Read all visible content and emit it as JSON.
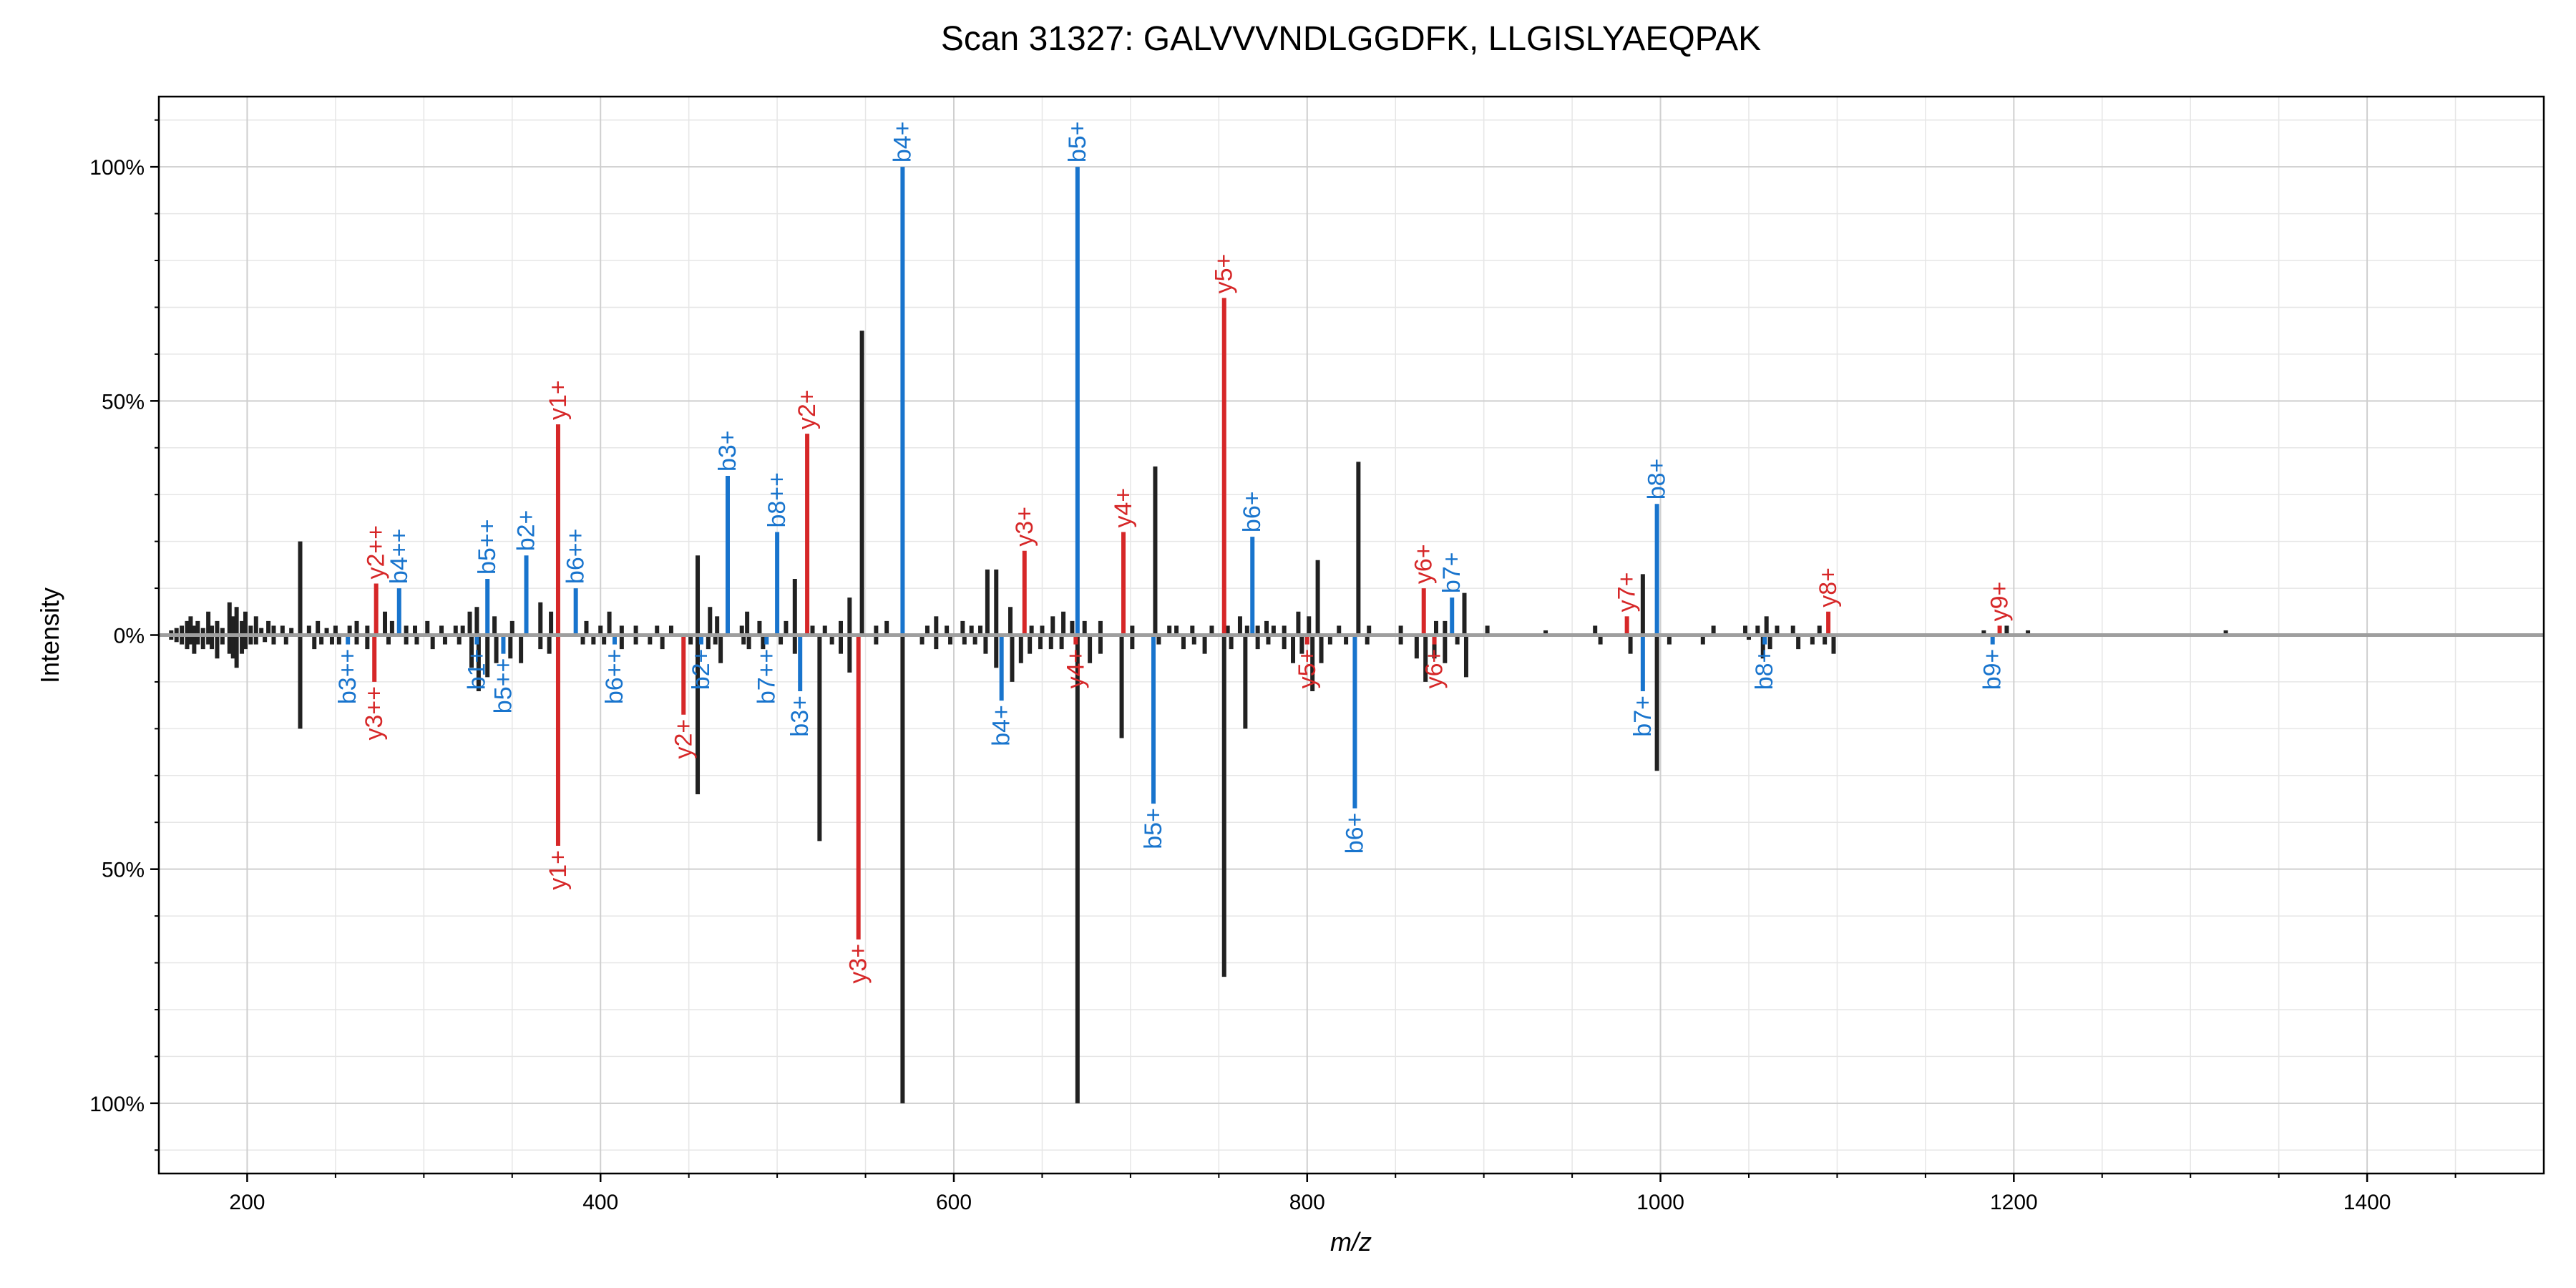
{
  "chart_data": {
    "type": "mirror_spectrum",
    "title": "Scan 31327: GALVVVNDLGGDFK, LLGISLYAEQPAK",
    "xlabel": "m/z",
    "ylabel": "Intensity",
    "xlim": [
      150,
      1500
    ],
    "ylim": [
      -115,
      115
    ],
    "x_ticks": [
      200,
      400,
      600,
      800,
      1000,
      1200,
      1400
    ],
    "x_tick_labels": [
      "200",
      "400",
      "600",
      "800",
      "1000",
      "1200",
      "1400"
    ],
    "y_ticks": [
      -100,
      -50,
      0,
      50,
      100
    ],
    "y_tick_labels": [
      "100%",
      "50%",
      "0%",
      "50%",
      "100%"
    ],
    "grid": true,
    "colors": {
      "b_ion": "#1874cd",
      "y_ion": "#d62728",
      "unannotated": "#212121",
      "zero_line": "#9e9e9e"
    },
    "top_annotated": [
      {
        "mz": 273,
        "intensity": 11,
        "label": "y2++",
        "ion": "y"
      },
      {
        "mz": 286,
        "intensity": 10,
        "label": "b4++",
        "ion": "b"
      },
      {
        "mz": 336,
        "intensity": 12,
        "label": "b5++",
        "ion": "b"
      },
      {
        "mz": 358,
        "intensity": 17,
        "label": "b2+",
        "ion": "b"
      },
      {
        "mz": 376,
        "intensity": 45,
        "label": "y1+",
        "ion": "y"
      },
      {
        "mz": 386,
        "intensity": 10,
        "label": "b6++",
        "ion": "b"
      },
      {
        "mz": 472,
        "intensity": 34,
        "label": "b3+",
        "ion": "b"
      },
      {
        "mz": 500,
        "intensity": 22,
        "label": "b8++",
        "ion": "b"
      },
      {
        "mz": 517,
        "intensity": 43,
        "label": "y2+",
        "ion": "y"
      },
      {
        "mz": 571,
        "intensity": 100,
        "label": "b4+",
        "ion": "b"
      },
      {
        "mz": 640,
        "intensity": 18,
        "label": "y3+",
        "ion": "y"
      },
      {
        "mz": 670,
        "intensity": 100,
        "label": "b5+",
        "ion": "b"
      },
      {
        "mz": 696,
        "intensity": 22,
        "label": "y4+",
        "ion": "y"
      },
      {
        "mz": 753,
        "intensity": 72,
        "label": "y5+",
        "ion": "y"
      },
      {
        "mz": 769,
        "intensity": 21,
        "label": "b6+",
        "ion": "b"
      },
      {
        "mz": 866,
        "intensity": 10,
        "label": "y6+",
        "ion": "y"
      },
      {
        "mz": 882,
        "intensity": 8,
        "label": "b7+",
        "ion": "b"
      },
      {
        "mz": 981,
        "intensity": 4,
        "label": "y7+",
        "ion": "y"
      },
      {
        "mz": 998,
        "intensity": 28,
        "label": "b8+",
        "ion": "b"
      },
      {
        "mz": 1095,
        "intensity": 5,
        "label": "y8+",
        "ion": "y"
      },
      {
        "mz": 1192,
        "intensity": 2,
        "label": "y9+",
        "ion": "y"
      }
    ],
    "bottom_annotated": [
      {
        "mz": 257,
        "intensity": 2,
        "label": "b3++",
        "ion": "b"
      },
      {
        "mz": 272,
        "intensity": 10,
        "label": "y3++",
        "ion": "y"
      },
      {
        "mz": 330,
        "intensity": 2,
        "label": "b1+",
        "ion": "b"
      },
      {
        "mz": 345,
        "intensity": 4,
        "label": "b5++",
        "ion": "b"
      },
      {
        "mz": 376,
        "intensity": 45,
        "label": "y1+",
        "ion": "y"
      },
      {
        "mz": 408,
        "intensity": 2,
        "label": "b6++",
        "ion": "b"
      },
      {
        "mz": 447,
        "intensity": 17,
        "label": "y2+",
        "ion": "y"
      },
      {
        "mz": 457,
        "intensity": 2,
        "label": "b2+",
        "ion": "b"
      },
      {
        "mz": 494,
        "intensity": 2,
        "label": "b7++",
        "ion": "b"
      },
      {
        "mz": 513,
        "intensity": 12,
        "label": "b3+",
        "ion": "b"
      },
      {
        "mz": 546,
        "intensity": 65,
        "label": "y3+",
        "ion": "y"
      },
      {
        "mz": 627,
        "intensity": 14,
        "label": "b4+",
        "ion": "b"
      },
      {
        "mz": 669,
        "intensity": 2,
        "label": "y4+",
        "ion": "y"
      },
      {
        "mz": 713,
        "intensity": 36,
        "label": "b5+",
        "ion": "b"
      },
      {
        "mz": 800,
        "intensity": 2,
        "label": "y5+",
        "ion": "y"
      },
      {
        "mz": 827,
        "intensity": 37,
        "label": "b6+",
        "ion": "b"
      },
      {
        "mz": 872,
        "intensity": 2,
        "label": "y6+",
        "ion": "y"
      },
      {
        "mz": 990,
        "intensity": 12,
        "label": "b7+",
        "ion": "b"
      },
      {
        "mz": 1059,
        "intensity": 2,
        "label": "b8+",
        "ion": "b"
      },
      {
        "mz": 1188,
        "intensity": 2,
        "label": "b9+",
        "ion": "b"
      }
    ],
    "top_unannotated": [
      [
        157,
        1
      ],
      [
        160,
        1.5
      ],
      [
        163,
        2
      ],
      [
        166,
        3
      ],
      [
        168,
        4
      ],
      [
        170,
        2
      ],
      [
        172,
        3
      ],
      [
        175,
        1.5
      ],
      [
        178,
        5
      ],
      [
        180,
        2
      ],
      [
        183,
        3
      ],
      [
        186,
        1.5
      ],
      [
        190,
        7
      ],
      [
        192,
        4
      ],
      [
        194,
        6
      ],
      [
        197,
        3
      ],
      [
        199,
        5
      ],
      [
        202,
        2
      ],
      [
        205,
        4
      ],
      [
        208,
        1.5
      ],
      [
        212,
        3
      ],
      [
        215,
        2
      ],
      [
        220,
        2
      ],
      [
        225,
        1.5
      ],
      [
        230,
        20
      ],
      [
        235,
        2
      ],
      [
        240,
        3
      ],
      [
        245,
        1.5
      ],
      [
        250,
        2
      ],
      [
        258,
        2
      ],
      [
        262,
        3
      ],
      [
        268,
        2
      ],
      [
        278,
        5
      ],
      [
        282,
        3
      ],
      [
        290,
        2
      ],
      [
        295,
        2
      ],
      [
        302,
        3
      ],
      [
        310,
        2
      ],
      [
        318,
        2
      ],
      [
        322,
        2
      ],
      [
        326,
        5
      ],
      [
        330,
        6
      ],
      [
        340,
        4
      ],
      [
        350,
        3
      ],
      [
        366,
        7
      ],
      [
        372,
        5
      ],
      [
        392,
        3
      ],
      [
        400,
        2
      ],
      [
        405,
        5
      ],
      [
        412,
        2
      ],
      [
        420,
        2
      ],
      [
        432,
        2
      ],
      [
        440,
        2
      ],
      [
        455,
        17
      ],
      [
        462,
        6
      ],
      [
        466,
        4
      ],
      [
        480,
        2
      ],
      [
        483,
        5
      ],
      [
        490,
        3
      ],
      [
        505,
        3
      ],
      [
        510,
        12
      ],
      [
        520,
        2
      ],
      [
        527,
        2
      ],
      [
        536,
        3
      ],
      [
        541,
        8
      ],
      [
        548,
        65
      ],
      [
        556,
        2
      ],
      [
        562,
        3
      ],
      [
        585,
        2
      ],
      [
        590,
        4
      ],
      [
        596,
        2
      ],
      [
        605,
        3
      ],
      [
        610,
        2
      ],
      [
        615,
        2
      ],
      [
        619,
        14
      ],
      [
        624,
        14
      ],
      [
        632,
        6
      ],
      [
        644,
        2
      ],
      [
        650,
        2
      ],
      [
        656,
        4
      ],
      [
        662,
        5
      ],
      [
        667,
        3
      ],
      [
        674,
        3
      ],
      [
        683,
        3
      ],
      [
        701,
        2
      ],
      [
        714,
        36
      ],
      [
        722,
        2
      ],
      [
        726,
        2
      ],
      [
        735,
        2
      ],
      [
        746,
        2
      ],
      [
        755,
        2
      ],
      [
        762,
        4
      ],
      [
        766,
        2
      ],
      [
        772,
        2
      ],
      [
        777,
        3
      ],
      [
        781,
        2
      ],
      [
        787,
        2
      ],
      [
        795,
        5
      ],
      [
        801,
        4
      ],
      [
        806,
        16
      ],
      [
        818,
        2
      ],
      [
        829,
        37
      ],
      [
        835,
        2
      ],
      [
        853,
        2
      ],
      [
        873,
        3
      ],
      [
        878,
        3
      ],
      [
        889,
        9
      ],
      [
        902,
        2
      ],
      [
        935,
        1
      ],
      [
        963,
        2
      ],
      [
        990,
        13
      ],
      [
        1030,
        2
      ],
      [
        1048,
        2
      ],
      [
        1055,
        2
      ],
      [
        1060,
        4
      ],
      [
        1066,
        2
      ],
      [
        1075,
        2
      ],
      [
        1090,
        2
      ],
      [
        1183,
        1
      ],
      [
        1196,
        2
      ],
      [
        1208,
        1
      ],
      [
        1320,
        1
      ]
    ],
    "bottom_unannotated": [
      [
        157,
        1
      ],
      [
        160,
        1.5
      ],
      [
        163,
        2
      ],
      [
        166,
        3
      ],
      [
        168,
        2
      ],
      [
        170,
        4
      ],
      [
        172,
        2
      ],
      [
        175,
        3
      ],
      [
        178,
        2
      ],
      [
        180,
        3
      ],
      [
        183,
        5
      ],
      [
        186,
        2
      ],
      [
        190,
        4
      ],
      [
        192,
        5
      ],
      [
        194,
        7
      ],
      [
        197,
        4
      ],
      [
        199,
        3
      ],
      [
        202,
        2
      ],
      [
        205,
        2
      ],
      [
        210,
        1.5
      ],
      [
        215,
        2
      ],
      [
        222,
        2
      ],
      [
        230,
        20
      ],
      [
        238,
        3
      ],
      [
        242,
        2
      ],
      [
        248,
        2
      ],
      [
        252,
        2
      ],
      [
        262,
        2
      ],
      [
        268,
        3
      ],
      [
        280,
        2
      ],
      [
        290,
        2
      ],
      [
        296,
        2
      ],
      [
        305,
        3
      ],
      [
        312,
        2
      ],
      [
        320,
        2
      ],
      [
        327,
        7
      ],
      [
        331,
        12
      ],
      [
        336,
        9
      ],
      [
        341,
        6
      ],
      [
        349,
        5
      ],
      [
        355,
        6
      ],
      [
        366,
        3
      ],
      [
        371,
        4
      ],
      [
        390,
        2
      ],
      [
        396,
        2
      ],
      [
        402,
        2
      ],
      [
        412,
        3
      ],
      [
        420,
        2
      ],
      [
        428,
        2
      ],
      [
        435,
        3
      ],
      [
        451,
        2
      ],
      [
        455,
        34
      ],
      [
        461,
        3
      ],
      [
        465,
        2
      ],
      [
        468,
        6
      ],
      [
        481,
        2
      ],
      [
        484,
        3
      ],
      [
        492,
        3
      ],
      [
        502,
        2
      ],
      [
        510,
        4
      ],
      [
        524,
        44
      ],
      [
        531,
        2
      ],
      [
        536,
        4
      ],
      [
        541,
        8
      ],
      [
        556,
        2
      ],
      [
        571,
        100
      ],
      [
        582,
        2
      ],
      [
        590,
        3
      ],
      [
        598,
        2
      ],
      [
        606,
        2
      ],
      [
        612,
        2
      ],
      [
        618,
        4
      ],
      [
        624,
        7
      ],
      [
        633,
        10
      ],
      [
        638,
        6
      ],
      [
        643,
        4
      ],
      [
        649,
        3
      ],
      [
        655,
        3
      ],
      [
        661,
        3
      ],
      [
        670,
        100
      ],
      [
        677,
        6
      ],
      [
        683,
        4
      ],
      [
        695,
        22
      ],
      [
        701,
        3
      ],
      [
        716,
        2
      ],
      [
        730,
        3
      ],
      [
        736,
        2
      ],
      [
        742,
        4
      ],
      [
        753,
        73
      ],
      [
        757,
        3
      ],
      [
        765,
        20
      ],
      [
        772,
        3
      ],
      [
        778,
        2
      ],
      [
        787,
        3
      ],
      [
        792,
        6
      ],
      [
        797,
        4
      ],
      [
        803,
        12
      ],
      [
        808,
        6
      ],
      [
        813,
        2
      ],
      [
        822,
        2
      ],
      [
        834,
        2
      ],
      [
        853,
        2
      ],
      [
        862,
        5
      ],
      [
        867,
        10
      ],
      [
        872,
        5
      ],
      [
        878,
        6
      ],
      [
        885,
        2
      ],
      [
        890,
        9
      ],
      [
        966,
        2
      ],
      [
        983,
        4
      ],
      [
        998,
        29
      ],
      [
        1005,
        2
      ],
      [
        1024,
        2
      ],
      [
        1050,
        1
      ],
      [
        1058,
        5
      ],
      [
        1062,
        3
      ],
      [
        1078,
        3
      ],
      [
        1086,
        2
      ],
      [
        1093,
        2
      ],
      [
        1098,
        4
      ]
    ]
  }
}
